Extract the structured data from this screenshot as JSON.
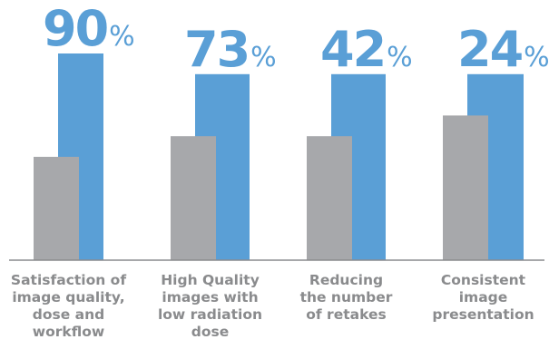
{
  "chart_data": {
    "type": "bar",
    "categories": [
      "Satisfaction of\nimage quality,\ndose and\nworkflow",
      "High Quality\nimages with\nlow radiation\ndose",
      "Reducing\nthe number\nof retakes",
      "Consistent\nimage\npresentation"
    ],
    "series": [
      {
        "values": [
          50,
          60,
          60,
          70
        ]
      },
      {
        "values": [
          100,
          90,
          90,
          90
        ]
      }
    ],
    "value_labels": [
      "90",
      "73",
      "42",
      "24"
    ],
    "percent_sign": "%",
    "ylim": [
      0,
      100
    ],
    "grid": false,
    "legend": "none",
    "colors": {
      "gray": "#a7a8ab",
      "blue": "#5a9fd6",
      "axis": "#8a8b8d",
      "label": "#8a8b8d"
    }
  }
}
